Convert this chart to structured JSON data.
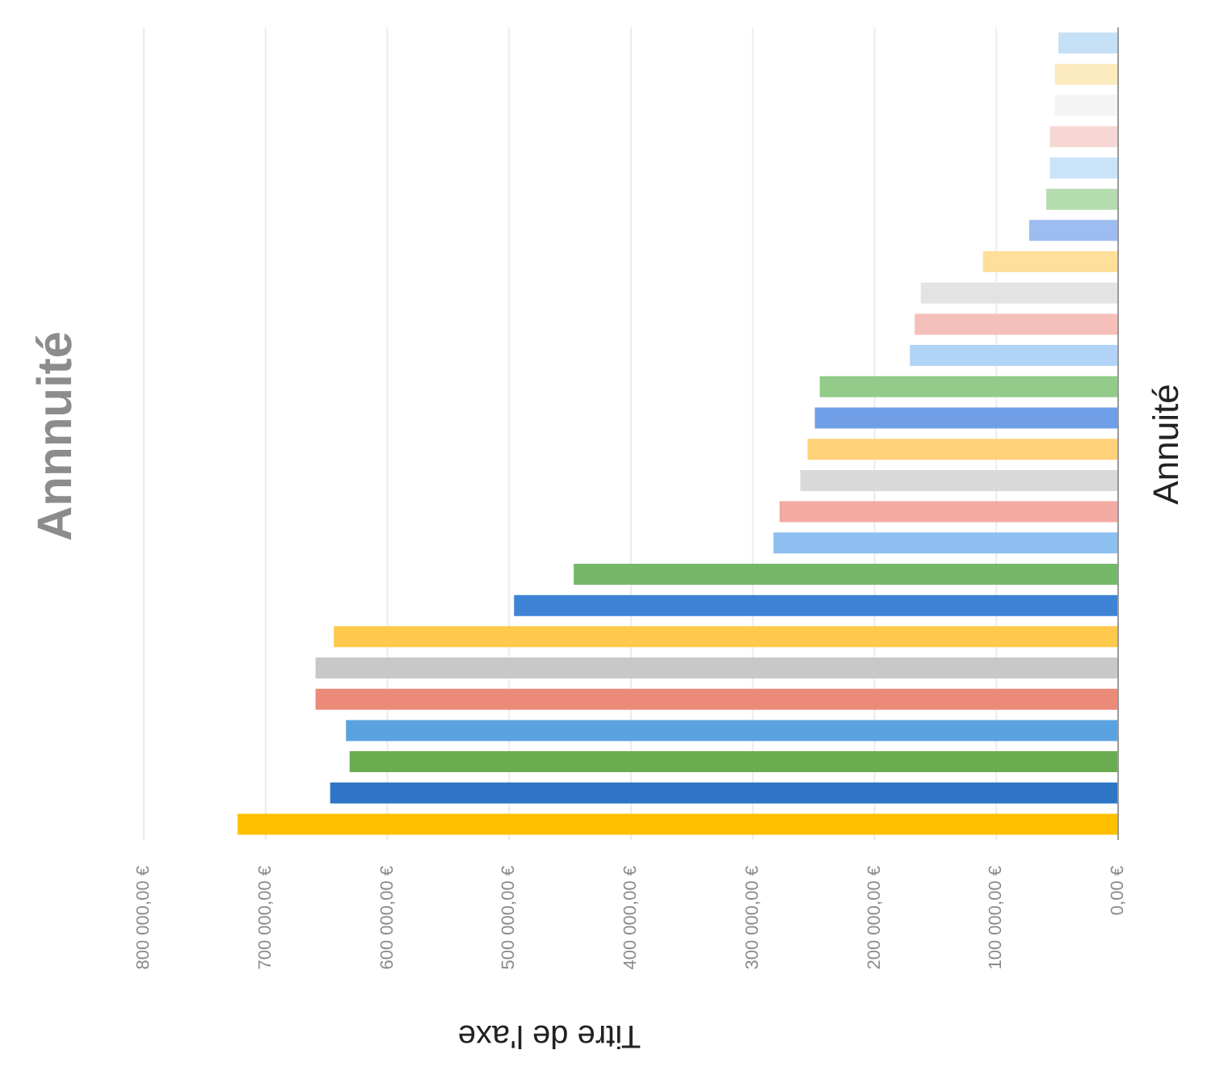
{
  "chart_data": {
    "type": "bar",
    "orientation": "horizontal",
    "title": "Annnuité",
    "xlabel": "Titre de l'axe",
    "ylabel": "Annuité",
    "categories": [
      null,
      null,
      null,
      null,
      null,
      null,
      null,
      null,
      null,
      null,
      null,
      null,
      null,
      null,
      null,
      null,
      null,
      null,
      null,
      null,
      null,
      null,
      null,
      null,
      null,
      null
    ],
    "values": [
      49000,
      52000,
      52000,
      56000,
      56000,
      59000,
      73000,
      111000,
      162000,
      167000,
      171000,
      245000,
      249000,
      255000,
      261000,
      278000,
      283000,
      447000,
      496000,
      644000,
      659000,
      659000,
      634000,
      631000,
      647000,
      723000
    ],
    "colors": [
      "#c5dff5",
      "#fdebc0",
      "#f4f4f4",
      "#f7d7d3",
      "#c9e3f8",
      "#b5dcae",
      "#9dbcf0",
      "#ffe09a",
      "#e3e3e3",
      "#f5c0ba",
      "#b0d3f7",
      "#92cc88",
      "#6f9ee6",
      "#ffd27a",
      "#d9d9d9",
      "#f2aaa2",
      "#8dbff0",
      "#75b86a",
      "#3f83d6",
      "#ffc94d",
      "#c8c8c8",
      "#ec8a7a",
      "#5ba3e0",
      "#6aac50",
      "#2e75c6",
      "#ffc000"
    ],
    "xlim": [
      800000,
      0
    ],
    "xticks": [
      {
        "value": 800000,
        "label": "800 000,00 €"
      },
      {
        "value": 700000,
        "label": "700 000,00 €"
      },
      {
        "value": 600000,
        "label": "600 000,00 €"
      },
      {
        "value": 500000,
        "label": "500 000,00 €"
      },
      {
        "value": 400000,
        "label": "400 000,00 €"
      },
      {
        "value": 300000,
        "label": "300 000,00 €"
      },
      {
        "value": 200000,
        "label": "200 000,00 €"
      },
      {
        "value": 100000,
        "label": "100 000,00 €"
      },
      {
        "value": 0,
        "label": "0,00 €"
      }
    ],
    "grid": "x"
  }
}
